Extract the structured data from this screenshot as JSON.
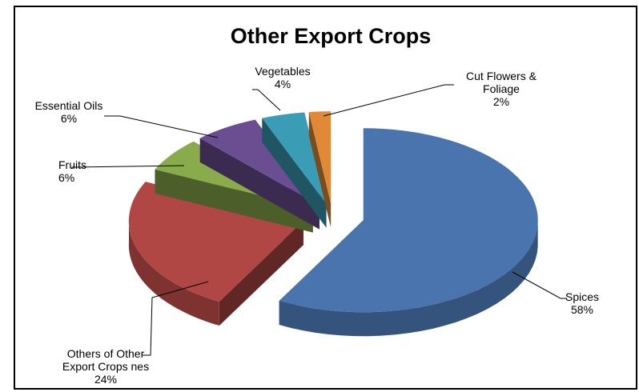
{
  "chart_data": {
    "type": "pie",
    "variant": "3d-exploded",
    "title": "Other Export Crops",
    "unit": "%",
    "slices": [
      {
        "label_lines": [
          "Spices"
        ],
        "value": 58,
        "value_text": "58%",
        "color": "#4A74AE"
      },
      {
        "label_lines": [
          "Others of Other",
          "Export Crops nes"
        ],
        "value": 24,
        "value_text": "24%",
        "color": "#B04744"
      },
      {
        "label_lines": [
          "Fruits"
        ],
        "value": 6,
        "value_text": "6%",
        "color": "#8AAB4B"
      },
      {
        "label_lines": [
          "Essential Oils"
        ],
        "value": 6,
        "value_text": "6%",
        "color": "#6B4E91"
      },
      {
        "label_lines": [
          "Vegetables"
        ],
        "value": 4,
        "value_text": "4%",
        "color": "#3B9DB5"
      },
      {
        "label_lines": [
          "Cut Flowers &",
          "Foliage"
        ],
        "value": 2,
        "value_text": "2%",
        "color": "#E08A37"
      }
    ]
  }
}
